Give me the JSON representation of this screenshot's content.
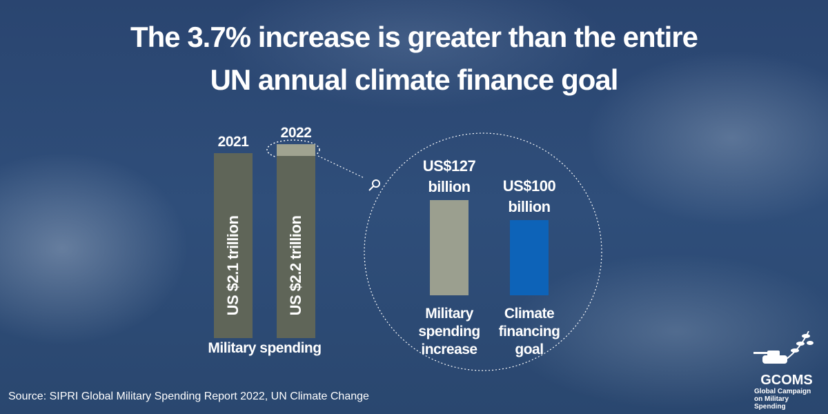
{
  "title": [
    "The 3.7% increase is greater than the entire",
    "UN annual climate finance goal"
  ],
  "chart_data": [
    {
      "type": "bar",
      "categories": [
        "2021",
        "2022"
      ],
      "values": [
        2.1,
        2.2
      ],
      "value_labels": [
        "US $2.1 trillion",
        "US $2.2 trillion"
      ],
      "x_label": "Military spending",
      "color": "#5f6558"
    },
    {
      "type": "bar",
      "categories": [
        "Military spending increase",
        "Climate financing goal"
      ],
      "values": [
        127,
        100
      ],
      "value_labels": [
        "US$127 billion",
        "US$100 billion"
      ],
      "colors": [
        "#9b9f8f",
        "#0d63b8"
      ]
    }
  ],
  "source": "Source: SIPRI Global Military Spending Report 2022, UN Climate Change",
  "logo": {
    "name": "GCOMS",
    "tagline": "Global Campaign on Military Spending"
  }
}
